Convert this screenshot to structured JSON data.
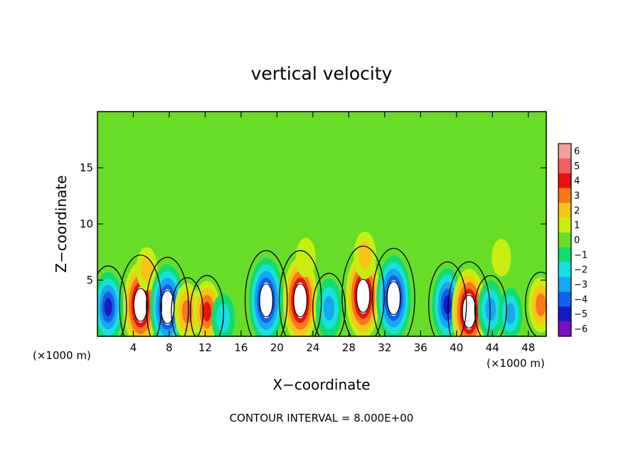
{
  "chart_data": {
    "type": "heatmap",
    "title": "vertical velocity",
    "xlabel": "X−coordinate",
    "ylabel": "Z−coordinate",
    "x_unit_left": "(×1000 m)",
    "x_unit_right": "(×1000 m)",
    "footer": "CONTOUR INTERVAL = 8.000E+00",
    "xlim": [
      0,
      50
    ],
    "ylim": [
      0,
      20
    ],
    "x_ticks": [
      4,
      8,
      12,
      16,
      20,
      24,
      28,
      32,
      36,
      40,
      44,
      48
    ],
    "x_tick_labels": [
      "4",
      "8",
      "12",
      "16",
      "20",
      "24",
      "28",
      "32",
      "36",
      "40",
      "44",
      "48"
    ],
    "y_ticks": [
      5,
      10,
      15
    ],
    "y_tick_labels": [
      "5",
      "10",
      "15"
    ],
    "colorbar": {
      "levels": [
        6,
        5,
        4,
        3,
        2,
        1,
        0,
        -1,
        -2,
        -3,
        -4,
        -5,
        -6
      ],
      "labels": [
        "6",
        "5",
        "4",
        "3",
        "2",
        "1",
        "0",
        "−1",
        "−2",
        "−3",
        "−4",
        "−5",
        "−6"
      ],
      "colors": [
        "#f4a0a0",
        "#f06060",
        "#ee1010",
        "#f8781a",
        "#f8c418",
        "#c8ee10",
        "#68dd28",
        "#10dd70",
        "#18e0e0",
        "#18a6ee",
        "#1060ee",
        "#1818c8",
        "#7a10c0"
      ]
    },
    "features": [
      {
        "x": 1.2,
        "z": 2.6,
        "value": -4.5
      },
      {
        "x": 4.8,
        "z": 2.8,
        "value": 6
      },
      {
        "x": 5.5,
        "z": 6.0,
        "value": 1.8
      },
      {
        "x": 7.8,
        "z": 2.6,
        "value": -6
      },
      {
        "x": 10.0,
        "z": 2.2,
        "value": 3.2
      },
      {
        "x": 12.2,
        "z": 2.2,
        "value": 3.6
      },
      {
        "x": 14.0,
        "z": 1.6,
        "value": -2.4
      },
      {
        "x": 18.8,
        "z": 3.2,
        "value": -6
      },
      {
        "x": 22.6,
        "z": 3.2,
        "value": 6
      },
      {
        "x": 23.2,
        "z": 7.0,
        "value": 1.4
      },
      {
        "x": 25.8,
        "z": 2.5,
        "value": -3.4
      },
      {
        "x": 29.6,
        "z": 3.6,
        "value": 6
      },
      {
        "x": 29.8,
        "z": 7.2,
        "value": 2.2
      },
      {
        "x": 33.0,
        "z": 3.4,
        "value": -6
      },
      {
        "x": 39.0,
        "z": 2.8,
        "value": -4.8
      },
      {
        "x": 41.4,
        "z": 2.2,
        "value": 6
      },
      {
        "x": 43.8,
        "z": 2.4,
        "value": -3.2
      },
      {
        "x": 46.0,
        "z": 2.0,
        "value": -2.6
      },
      {
        "x": 49.4,
        "z": 2.8,
        "value": 3.0
      },
      {
        "x": 45.0,
        "z": 7.0,
        "value": 1.2
      }
    ]
  }
}
